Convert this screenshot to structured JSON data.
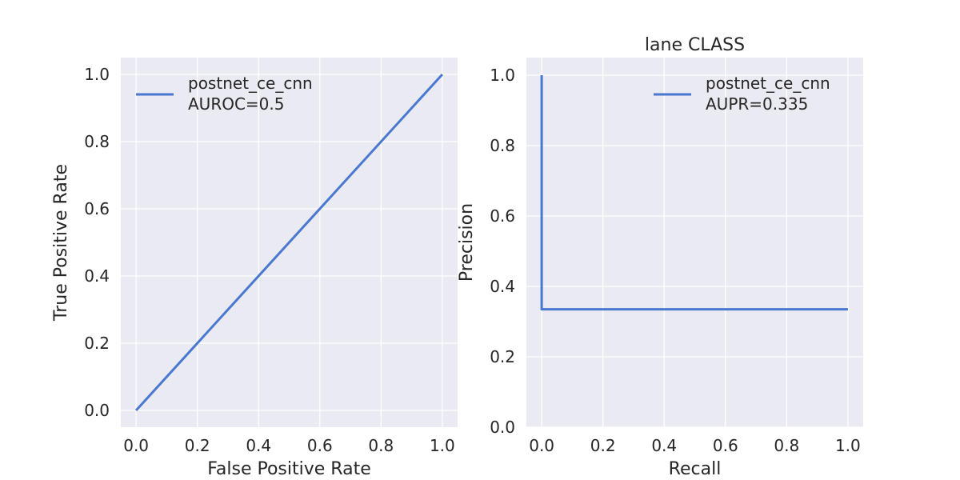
{
  "chart_data": [
    {
      "type": "line",
      "title": "",
      "xlabel": "False Positive Rate",
      "ylabel": "True Positive Rate",
      "xlim": [
        -0.05,
        1.05
      ],
      "ylim": [
        -0.05,
        1.05
      ],
      "xticks": [
        0.0,
        0.2,
        0.4,
        0.6,
        0.8,
        1.0
      ],
      "yticks": [
        0.0,
        0.2,
        0.4,
        0.6,
        0.8,
        1.0
      ],
      "xtick_labels": [
        "0.0",
        "0.2",
        "0.4",
        "0.6",
        "0.8",
        "1.0"
      ],
      "ytick_labels": [
        "0.0",
        "0.2",
        "0.4",
        "0.6",
        "0.8",
        "1.0"
      ],
      "grid": true,
      "legend_position": "top-left",
      "series": [
        {
          "name": "postnet_ce_cnn",
          "legend_lines": [
            "postnet_ce_cnn",
            "AUROC=0.5"
          ],
          "color": "#4878d0",
          "x": [
            0.0,
            1.0
          ],
          "y": [
            0.0,
            1.0
          ]
        }
      ]
    },
    {
      "type": "line",
      "title": "lane CLASS",
      "xlabel": "Recall",
      "ylabel": "Precision",
      "xlim": [
        -0.05,
        1.05
      ],
      "ylim": [
        0.0,
        1.05
      ],
      "xticks": [
        0.0,
        0.2,
        0.4,
        0.6,
        0.8,
        1.0
      ],
      "yticks": [
        0.0,
        0.2,
        0.4,
        0.6,
        0.8,
        1.0
      ],
      "xtick_labels": [
        "0.0",
        "0.2",
        "0.4",
        "0.6",
        "0.8",
        "1.0"
      ],
      "ytick_labels": [
        "0.0",
        "0.2",
        "0.4",
        "0.6",
        "0.8",
        "1.0"
      ],
      "grid": true,
      "legend_position": "top-right",
      "series": [
        {
          "name": "postnet_ce_cnn",
          "legend_lines": [
            "postnet_ce_cnn",
            "AUPR=0.335"
          ],
          "color": "#4878d0",
          "x": [
            0.0,
            0.0,
            1.0
          ],
          "y": [
            1.0,
            0.335,
            0.335
          ]
        }
      ]
    }
  ]
}
